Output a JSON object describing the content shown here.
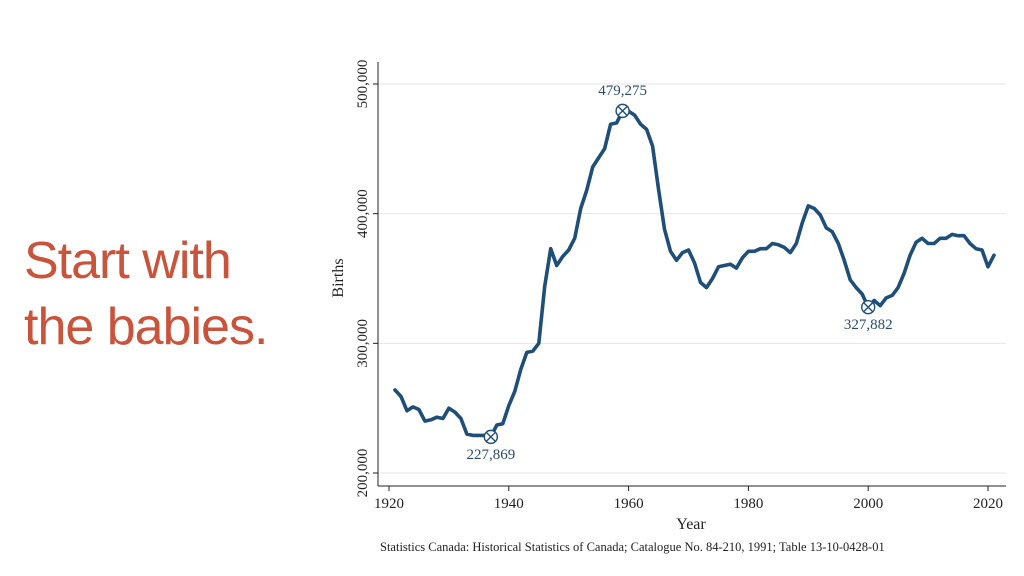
{
  "headline": {
    "line1": "Start with",
    "line2": "the babies."
  },
  "source_note": "Statistics Canada: Historical Statistics of Canada; Catalogue No. 84-210, 1991; Table 13-10-0428-01",
  "colors": {
    "headline": "#c9533b",
    "series": "#1f4e79",
    "grid": "#e6e6e6",
    "axis": "#222222"
  },
  "chart_data": {
    "type": "line",
    "xlabel": "Year",
    "ylabel": "Births",
    "xlim": [
      1920,
      2022
    ],
    "ylim": [
      200000,
      500000
    ],
    "x_ticks": [
      1920,
      1940,
      1960,
      1980,
      2000,
      2020
    ],
    "x_tick_labels": [
      "1920",
      "1940",
      "1960",
      "1980",
      "2000",
      "2020"
    ],
    "y_ticks": [
      200000,
      300000,
      400000,
      500000
    ],
    "y_tick_labels": [
      "200,000",
      "300,000",
      "400,000",
      "500,000"
    ],
    "grid": true,
    "legend": "none",
    "series": [
      {
        "x": [
          1921,
          1922,
          1923,
          1924,
          1925,
          1926,
          1927,
          1928,
          1929,
          1930,
          1931,
          1932,
          1933,
          1934,
          1935,
          1936,
          1937,
          1938,
          1939,
          1940,
          1941,
          1942,
          1943,
          1944,
          1945,
          1946,
          1947,
          1948,
          1949,
          1950,
          1951,
          1952,
          1953,
          1954,
          1955,
          1956,
          1957,
          1958,
          1959,
          1960,
          1961,
          1962,
          1963,
          1964,
          1965,
          1966,
          1967,
          1968,
          1969,
          1970,
          1971,
          1972,
          1973,
          1974,
          1975,
          1976,
          1977,
          1978,
          1979,
          1980,
          1981,
          1982,
          1983,
          1984,
          1985,
          1986,
          1987,
          1988,
          1989,
          1990,
          1991,
          1992,
          1993,
          1994,
          1995,
          1996,
          1997,
          1998,
          1999,
          2000,
          2001,
          2002,
          2003,
          2004,
          2005,
          2006,
          2007,
          2008,
          2009,
          2010,
          2011,
          2012,
          2013,
          2014,
          2015,
          2016,
          2017,
          2018,
          2019,
          2020,
          2021
        ],
        "y": [
          264000,
          259000,
          248000,
          251000,
          249000,
          240000,
          241000,
          243000,
          242000,
          250000,
          247000,
          242000,
          230000,
          229000,
          229000,
          229000,
          227869,
          237000,
          238000,
          252000,
          263000,
          280000,
          293000,
          294000,
          300000,
          344000,
          373000,
          360000,
          367000,
          372000,
          381000,
          404000,
          418000,
          436000,
          443000,
          450000,
          469000,
          470000,
          479275,
          479000,
          476000,
          469000,
          465000,
          452000,
          419000,
          388000,
          371000,
          364000,
          370000,
          372000,
          362000,
          347000,
          343000,
          350000,
          359000,
          360000,
          361000,
          358000,
          366000,
          371000,
          371000,
          373000,
          373000,
          377000,
          376000,
          374000,
          370000,
          377000,
          393000,
          406000,
          404000,
          399000,
          389000,
          386000,
          377000,
          364000,
          349000,
          343000,
          338000,
          327882,
          333000,
          329000,
          335000,
          337000,
          343000,
          354000,
          368000,
          378000,
          381000,
          377000,
          377000,
          381000,
          381000,
          384000,
          383000,
          383000,
          377000,
          373000,
          372000,
          359000,
          368000
        ]
      }
    ],
    "annotations": [
      {
        "x": 1937,
        "y": 227869,
        "label": "227,869",
        "position": "below"
      },
      {
        "x": 1959,
        "y": 479275,
        "label": "479,275",
        "position": "above"
      },
      {
        "x": 2000,
        "y": 327882,
        "label": "327,882",
        "position": "below"
      }
    ]
  }
}
